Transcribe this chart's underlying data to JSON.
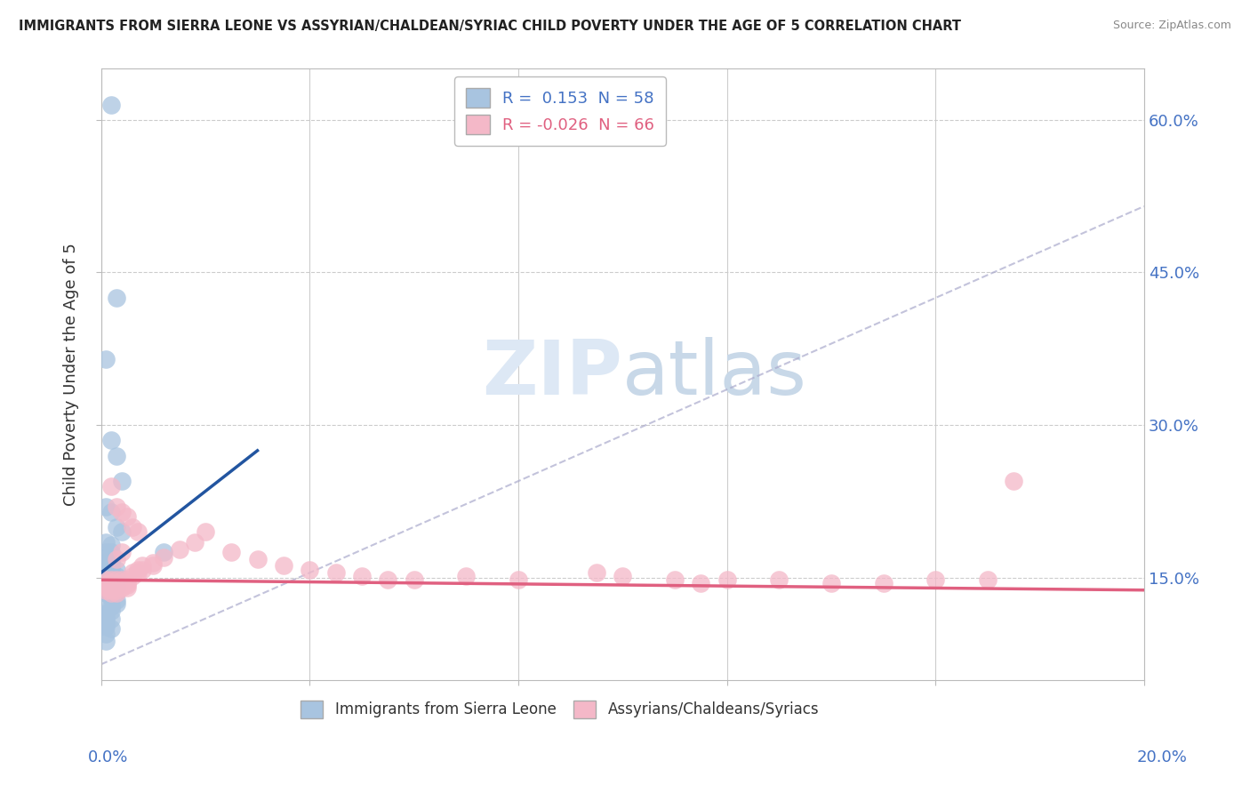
{
  "title": "IMMIGRANTS FROM SIERRA LEONE VS ASSYRIAN/CHALDEAN/SYRIAC CHILD POVERTY UNDER THE AGE OF 5 CORRELATION CHART",
  "source": "Source: ZipAtlas.com",
  "ylabel": "Child Poverty Under the Age of 5",
  "ylabel_ticks": [
    "15.0%",
    "30.0%",
    "45.0%",
    "60.0%"
  ],
  "ylabel_tick_vals": [
    0.15,
    0.3,
    0.45,
    0.6
  ],
  "xmin": 0.0,
  "xmax": 0.2,
  "ymin": 0.05,
  "ymax": 0.65,
  "legend1_label": "R =  0.153  N = 58",
  "legend2_label": "R = -0.026  N = 66",
  "scatter1_color": "#a8c4e0",
  "scatter2_color": "#f4b8c8",
  "line1_color": "#2255a0",
  "line2_color": "#e06080",
  "legend_label1": "Immigrants from Sierra Leone",
  "legend_label2": "Assyrians/Chaldeans/Syriacs",
  "blue_line_x": [
    0.0,
    0.03
  ],
  "blue_line_y": [
    0.155,
    0.275
  ],
  "pink_line_x": [
    0.0,
    0.2
  ],
  "pink_line_y": [
    0.148,
    0.138
  ],
  "dash_line_x": [
    0.0,
    0.2
  ],
  "dash_line_y": [
    0.065,
    0.515
  ],
  "sl_x": [
    0.002,
    0.003,
    0.001,
    0.002,
    0.003,
    0.004,
    0.001,
    0.002,
    0.003,
    0.004,
    0.001,
    0.002,
    0.001,
    0.002,
    0.001,
    0.002,
    0.001,
    0.002,
    0.001,
    0.002,
    0.003,
    0.001,
    0.002,
    0.001,
    0.002,
    0.003,
    0.001,
    0.001,
    0.002,
    0.003,
    0.001,
    0.002,
    0.001,
    0.002,
    0.001,
    0.002,
    0.001,
    0.003,
    0.002,
    0.001,
    0.001,
    0.002,
    0.002,
    0.003,
    0.003,
    0.002,
    0.001,
    0.002,
    0.001,
    0.001,
    0.002,
    0.001,
    0.001,
    0.001,
    0.002,
    0.001,
    0.001,
    0.012
  ],
  "sl_y": [
    0.615,
    0.425,
    0.365,
    0.285,
    0.27,
    0.245,
    0.22,
    0.215,
    0.2,
    0.195,
    0.185,
    0.182,
    0.175,
    0.175,
    0.17,
    0.168,
    0.165,
    0.165,
    0.162,
    0.16,
    0.158,
    0.156,
    0.155,
    0.153,
    0.153,
    0.152,
    0.15,
    0.149,
    0.148,
    0.148,
    0.147,
    0.147,
    0.145,
    0.145,
    0.143,
    0.143,
    0.141,
    0.14,
    0.138,
    0.137,
    0.135,
    0.133,
    0.13,
    0.128,
    0.125,
    0.122,
    0.12,
    0.118,
    0.115,
    0.112,
    0.11,
    0.108,
    0.105,
    0.102,
    0.1,
    0.095,
    0.088,
    0.175
  ],
  "acs_x": [
    0.001,
    0.001,
    0.001,
    0.001,
    0.001,
    0.002,
    0.002,
    0.002,
    0.002,
    0.002,
    0.002,
    0.003,
    0.003,
    0.003,
    0.003,
    0.003,
    0.003,
    0.004,
    0.004,
    0.004,
    0.004,
    0.005,
    0.005,
    0.005,
    0.005,
    0.006,
    0.006,
    0.007,
    0.007,
    0.008,
    0.008,
    0.01,
    0.01,
    0.012,
    0.015,
    0.018,
    0.02,
    0.025,
    0.03,
    0.035,
    0.04,
    0.045,
    0.05,
    0.055,
    0.06,
    0.07,
    0.08,
    0.095,
    0.1,
    0.11,
    0.115,
    0.12,
    0.13,
    0.14,
    0.15,
    0.16,
    0.17,
    0.175,
    0.002,
    0.003,
    0.004,
    0.005,
    0.006,
    0.007,
    0.003,
    0.004
  ],
  "acs_y": [
    0.148,
    0.145,
    0.143,
    0.14,
    0.138,
    0.148,
    0.145,
    0.143,
    0.14,
    0.138,
    0.135,
    0.148,
    0.145,
    0.143,
    0.14,
    0.138,
    0.135,
    0.148,
    0.145,
    0.143,
    0.14,
    0.148,
    0.145,
    0.143,
    0.14,
    0.155,
    0.152,
    0.158,
    0.155,
    0.162,
    0.158,
    0.165,
    0.162,
    0.17,
    0.178,
    0.185,
    0.195,
    0.175,
    0.168,
    0.162,
    0.158,
    0.155,
    0.152,
    0.148,
    0.148,
    0.152,
    0.148,
    0.155,
    0.152,
    0.148,
    0.145,
    0.148,
    0.148,
    0.145,
    0.145,
    0.148,
    0.148,
    0.245,
    0.24,
    0.22,
    0.215,
    0.21,
    0.2,
    0.195,
    0.168,
    0.175
  ]
}
